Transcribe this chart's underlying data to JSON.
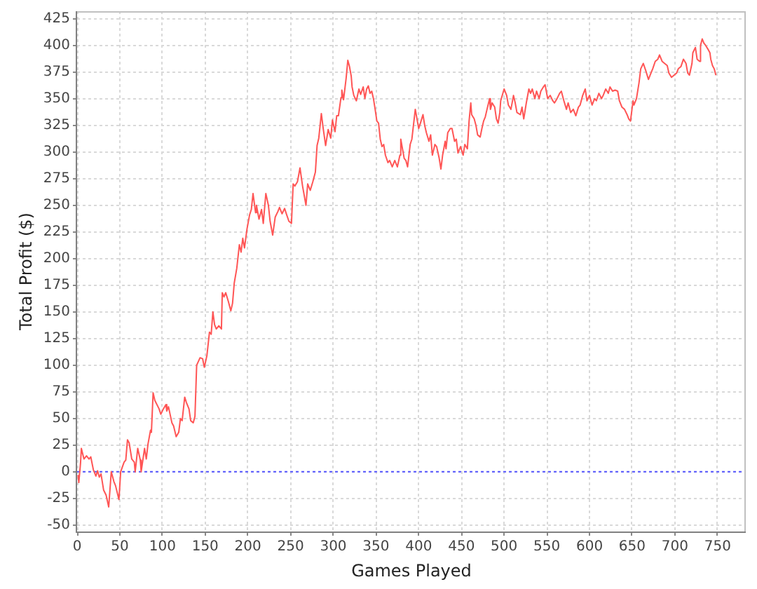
{
  "chart_data": {
    "type": "line",
    "xlabel": "Games Played",
    "ylabel": "Total Profit ($)",
    "x": [
      1,
      2,
      4,
      5,
      8,
      11,
      14,
      16,
      19,
      22,
      24,
      26,
      28,
      31,
      34,
      37,
      40,
      43,
      45,
      49,
      51,
      55,
      57,
      59,
      61,
      64,
      67,
      68,
      71,
      74,
      75,
      77,
      79,
      81,
      83,
      86,
      87,
      89,
      91,
      96,
      98,
      101,
      104,
      105,
      107,
      111,
      113,
      116,
      119,
      121,
      123,
      126,
      128,
      131,
      133,
      136,
      138,
      140,
      144,
      147,
      149,
      152,
      155,
      157,
      159,
      161,
      163,
      166,
      169,
      170,
      172,
      174,
      177,
      180,
      182,
      184,
      187,
      190,
      192,
      194,
      196,
      199,
      202,
      204,
      206,
      209,
      210,
      213,
      216,
      218,
      221,
      224,
      226,
      229,
      232,
      235,
      237,
      240,
      243,
      245,
      248,
      251,
      253,
      255,
      258,
      261,
      264,
      268,
      270,
      273,
      276,
      279,
      281,
      283,
      286,
      288,
      291,
      294,
      297,
      299,
      302,
      304,
      306,
      309,
      310,
      312,
      315,
      317,
      319,
      321,
      322,
      324,
      327,
      330,
      332,
      335,
      337,
      339,
      341,
      343,
      345,
      347,
      349,
      351,
      353,
      355,
      357,
      359,
      361,
      364,
      366,
      369,
      372,
      375,
      378,
      379,
      381,
      383,
      385,
      387,
      390,
      392,
      396,
      398,
      400,
      402,
      405,
      407,
      409,
      412,
      414,
      416,
      419,
      421,
      424,
      426,
      428,
      431,
      432,
      434,
      437,
      439,
      442,
      444,
      446,
      449,
      452,
      454,
      457,
      459,
      461,
      462,
      465,
      467,
      469,
      472,
      474,
      476,
      478,
      480,
      483,
      484,
      486,
      489,
      491,
      493,
      495,
      496,
      500,
      503,
      505,
      508,
      511,
      513,
      515,
      519,
      521,
      523,
      526,
      529,
      531,
      533,
      536,
      538,
      541,
      543,
      546,
      548,
      551,
      554,
      557,
      559,
      562,
      565,
      567,
      570,
      573,
      575,
      578,
      581,
      584,
      587,
      589,
      592,
      595,
      597,
      600,
      603,
      606,
      608,
      611,
      614,
      616,
      619,
      622,
      624,
      627,
      630,
      633,
      635,
      638,
      641,
      644,
      646,
      648,
      651,
      652,
      655,
      658,
      660,
      663,
      666,
      669,
      671,
      674,
      677,
      680,
      682,
      685,
      688,
      691,
      693,
      696,
      699,
      702,
      704,
      707,
      710,
      713,
      715,
      717,
      720,
      721,
      724,
      726,
      729,
      730,
      732,
      734,
      736,
      739,
      741,
      742,
      744,
      746,
      748
    ],
    "series": [
      {
        "color": "#ff5555",
        "values": [
          -3,
          -10,
          8,
          22,
          12,
          15,
          12,
          14,
          2,
          -4,
          1,
          -5,
          -2,
          -17,
          -22,
          -33,
          0,
          -9,
          -13,
          -26,
          0,
          9,
          11,
          30,
          27,
          12,
          9,
          0,
          22,
          11,
          0,
          11,
          22,
          12,
          26,
          39,
          37,
          74,
          67,
          59,
          54,
          59,
          63,
          57,
          61,
          46,
          43,
          33,
          37,
          50,
          48,
          70,
          65,
          59,
          48,
          46,
          52,
          100,
          107,
          106,
          98,
          109,
          131,
          129,
          150,
          138,
          134,
          137,
          134,
          168,
          164,
          168,
          160,
          151,
          158,
          177,
          191,
          213,
          206,
          219,
          210,
          228,
          241,
          246,
          261,
          243,
          250,
          237,
          246,
          233,
          261,
          250,
          235,
          222,
          239,
          244,
          248,
          242,
          247,
          242,
          235,
          233,
          270,
          268,
          272,
          285,
          268,
          250,
          270,
          264,
          272,
          281,
          306,
          313,
          336,
          323,
          306,
          321,
          313,
          330,
          319,
          334,
          334,
          351,
          358,
          349,
          369,
          386,
          380,
          371,
          361,
          353,
          348,
          359,
          354,
          361,
          350,
          359,
          362,
          355,
          357,
          350,
          340,
          329,
          327,
          312,
          305,
          307,
          297,
          290,
          292,
          286,
          292,
          286,
          297,
          312,
          303,
          294,
          292,
          286,
          307,
          312,
          340,
          331,
          322,
          327,
          335,
          325,
          318,
          310,
          316,
          297,
          307,
          305,
          294,
          284,
          297,
          310,
          303,
          318,
          322,
          322,
          310,
          312,
          299,
          305,
          297,
          307,
          303,
          329,
          346,
          335,
          331,
          325,
          316,
          314,
          322,
          329,
          333,
          340,
          350,
          340,
          346,
          342,
          331,
          327,
          337,
          348,
          359,
          353,
          344,
          340,
          353,
          346,
          337,
          335,
          342,
          331,
          346,
          359,
          355,
          359,
          350,
          357,
          350,
          357,
          361,
          363,
          350,
          353,
          348,
          346,
          350,
          355,
          357,
          348,
          340,
          346,
          337,
          340,
          334,
          342,
          344,
          353,
          359,
          348,
          353,
          344,
          350,
          348,
          355,
          350,
          353,
          359,
          355,
          361,
          357,
          358,
          357,
          348,
          342,
          340,
          335,
          331,
          329,
          348,
          344,
          350,
          365,
          378,
          383,
          376,
          368,
          372,
          378,
          385,
          387,
          391,
          385,
          383,
          381,
          374,
          370,
          372,
          374,
          378,
          380,
          387,
          383,
          374,
          372,
          383,
          393,
          398,
          387,
          385,
          400,
          406,
          402,
          400,
          396,
          393,
          387,
          381,
          378,
          372
        ]
      }
    ],
    "xlim": [
      0,
      783
    ],
    "ylim": [
      -56,
      432
    ],
    "xticks": [
      0,
      50,
      100,
      150,
      200,
      250,
      300,
      350,
      400,
      450,
      500,
      550,
      600,
      650,
      700,
      750
    ],
    "yticks": [
      -50,
      -25,
      0,
      25,
      50,
      75,
      100,
      125,
      150,
      175,
      200,
      225,
      250,
      275,
      300,
      325,
      350,
      375,
      400,
      425
    ],
    "ref_lines": [
      {
        "axis": "y",
        "value": 0,
        "color": "#5555ff",
        "line_style": "dotted"
      }
    ],
    "grid": true,
    "marker": "none",
    "line_style": "solid"
  }
}
